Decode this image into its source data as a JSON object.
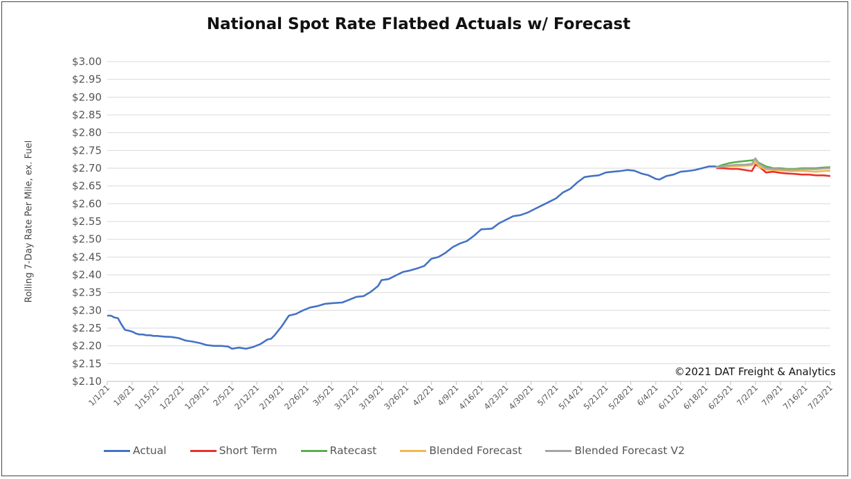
{
  "chart_data": {
    "type": "line",
    "title": "National Spot Rate Flatbed Actuals w/ Forecast",
    "ylabel": "Rolling 7-Day Rate Per Mile, ex. Fuel",
    "ylim": [
      2.1,
      3.0
    ],
    "ytick_labels": [
      "$3.00",
      "$2.95",
      "$2.90",
      "$2.85",
      "$2.80",
      "$2.75",
      "$2.70",
      "$2.65",
      "$2.60",
      "$2.55",
      "$2.50",
      "$2.45",
      "$2.40",
      "$2.35",
      "$2.30",
      "$2.25",
      "$2.20",
      "$2.15",
      "$2.10"
    ],
    "x_start": "1/1/21",
    "x_end": "7/23/21",
    "xtick_labels": [
      "1/1/21",
      "1/8/21",
      "1/15/21",
      "1/22/21",
      "1/29/21",
      "2/5/21",
      "2/12/21",
      "2/19/21",
      "2/26/21",
      "3/5/21",
      "3/12/21",
      "3/19/21",
      "3/26/21",
      "4/2/21",
      "4/9/21",
      "4/16/21",
      "4/23/21",
      "4/30/21",
      "5/7/21",
      "5/14/21",
      "5/21/21",
      "5/28/21",
      "6/4/21",
      "6/11/21",
      "6/18/21",
      "6/25/21",
      "7/2/21",
      "7/9/21",
      "7/16/21",
      "7/23/21"
    ],
    "grid": "horizontal",
    "annotation": "©2021 DAT Freight & Analytics",
    "legend_position": "bottom",
    "series": [
      {
        "name": "Actual",
        "color": "#4472C4",
        "points": [
          [
            "1/1/21",
            2.285
          ],
          [
            "1/2/21",
            2.285
          ],
          [
            "1/3/21",
            2.28
          ],
          [
            "1/4/21",
            2.278
          ],
          [
            "1/5/21",
            2.26
          ],
          [
            "1/6/21",
            2.245
          ],
          [
            "1/7/21",
            2.243
          ],
          [
            "1/8/21",
            2.24
          ],
          [
            "1/9/21",
            2.235
          ],
          [
            "1/10/21",
            2.232
          ],
          [
            "1/11/21",
            2.232
          ],
          [
            "1/12/21",
            2.23
          ],
          [
            "1/13/21",
            2.23
          ],
          [
            "1/14/21",
            2.228
          ],
          [
            "1/15/21",
            2.228
          ],
          [
            "1/17/21",
            2.226
          ],
          [
            "1/19/21",
            2.225
          ],
          [
            "1/21/21",
            2.222
          ],
          [
            "1/23/21",
            2.215
          ],
          [
            "1/25/21",
            2.212
          ],
          [
            "1/27/21",
            2.208
          ],
          [
            "1/29/21",
            2.202
          ],
          [
            "1/31/21",
            2.2
          ],
          [
            "2/2/21",
            2.2
          ],
          [
            "2/4/21",
            2.198
          ],
          [
            "2/5/21",
            2.192
          ],
          [
            "2/7/21",
            2.195
          ],
          [
            "2/9/21",
            2.192
          ],
          [
            "2/11/21",
            2.197
          ],
          [
            "2/13/21",
            2.205
          ],
          [
            "2/15/21",
            2.218
          ],
          [
            "2/16/21",
            2.22
          ],
          [
            "2/17/21",
            2.23
          ],
          [
            "2/19/21",
            2.255
          ],
          [
            "2/21/21",
            2.285
          ],
          [
            "2/23/21",
            2.29
          ],
          [
            "2/25/21",
            2.3
          ],
          [
            "2/27/21",
            2.308
          ],
          [
            "3/1/21",
            2.312
          ],
          [
            "3/3/21",
            2.318
          ],
          [
            "3/5/21",
            2.32
          ],
          [
            "3/8/21",
            2.322
          ],
          [
            "3/10/21",
            2.33
          ],
          [
            "3/12/21",
            2.338
          ],
          [
            "3/14/21",
            2.34
          ],
          [
            "3/16/21",
            2.352
          ],
          [
            "3/18/21",
            2.368
          ],
          [
            "3/19/21",
            2.385
          ],
          [
            "3/21/21",
            2.388
          ],
          [
            "3/23/21",
            2.398
          ],
          [
            "3/25/21",
            2.408
          ],
          [
            "3/27/21",
            2.412
          ],
          [
            "3/29/21",
            2.418
          ],
          [
            "3/31/21",
            2.425
          ],
          [
            "4/2/21",
            2.445
          ],
          [
            "4/4/21",
            2.45
          ],
          [
            "4/6/21",
            2.462
          ],
          [
            "4/8/21",
            2.478
          ],
          [
            "4/10/21",
            2.488
          ],
          [
            "4/12/21",
            2.495
          ],
          [
            "4/14/21",
            2.51
          ],
          [
            "4/16/21",
            2.528
          ],
          [
            "4/19/21",
            2.53
          ],
          [
            "4/21/21",
            2.545
          ],
          [
            "4/23/21",
            2.555
          ],
          [
            "4/25/21",
            2.565
          ],
          [
            "4/27/21",
            2.568
          ],
          [
            "4/29/21",
            2.575
          ],
          [
            "5/1/21",
            2.585
          ],
          [
            "5/3/21",
            2.595
          ],
          [
            "5/5/21",
            2.605
          ],
          [
            "5/7/21",
            2.615
          ],
          [
            "5/9/21",
            2.632
          ],
          [
            "5/11/21",
            2.642
          ],
          [
            "5/13/21",
            2.66
          ],
          [
            "5/15/21",
            2.675
          ],
          [
            "5/17/21",
            2.678
          ],
          [
            "5/19/21",
            2.68
          ],
          [
            "5/21/21",
            2.688
          ],
          [
            "5/23/21",
            2.69
          ],
          [
            "5/25/21",
            2.692
          ],
          [
            "5/27/21",
            2.695
          ],
          [
            "5/29/21",
            2.693
          ],
          [
            "5/31/21",
            2.685
          ],
          [
            "6/2/21",
            2.68
          ],
          [
            "6/4/21",
            2.67
          ],
          [
            "6/5/21",
            2.668
          ],
          [
            "6/7/21",
            2.678
          ],
          [
            "6/9/21",
            2.682
          ],
          [
            "6/11/21",
            2.69
          ],
          [
            "6/13/21",
            2.692
          ],
          [
            "6/15/21",
            2.695
          ],
          [
            "6/17/21",
            2.7
          ],
          [
            "6/19/21",
            2.705
          ],
          [
            "6/21/21",
            2.705
          ]
        ]
      },
      {
        "name": "Short Term",
        "color": "#E8312A",
        "points": [
          [
            "6/21/21",
            2.7
          ],
          [
            "6/23/21",
            2.7
          ],
          [
            "6/25/21",
            2.698
          ],
          [
            "6/27/21",
            2.698
          ],
          [
            "6/29/21",
            2.695
          ],
          [
            "7/1/21",
            2.692
          ],
          [
            "7/2/21",
            2.71
          ],
          [
            "7/3/21",
            2.705
          ],
          [
            "7/5/21",
            2.688
          ],
          [
            "7/7/21",
            2.69
          ],
          [
            "7/9/21",
            2.687
          ],
          [
            "7/11/21",
            2.685
          ],
          [
            "7/13/21",
            2.684
          ],
          [
            "7/15/21",
            2.682
          ],
          [
            "7/17/21",
            2.682
          ],
          [
            "7/19/21",
            2.68
          ],
          [
            "7/21/21",
            2.68
          ],
          [
            "7/23/21",
            2.678
          ]
        ]
      },
      {
        "name": "Ratecast",
        "color": "#5BAE4B",
        "points": [
          [
            "6/21/21",
            2.703
          ],
          [
            "6/23/21",
            2.71
          ],
          [
            "6/25/21",
            2.715
          ],
          [
            "6/27/21",
            2.718
          ],
          [
            "6/29/21",
            2.72
          ],
          [
            "7/1/21",
            2.722
          ],
          [
            "7/2/21",
            2.725
          ],
          [
            "7/3/21",
            2.715
          ],
          [
            "7/5/21",
            2.705
          ],
          [
            "7/7/21",
            2.7
          ],
          [
            "7/9/21",
            2.7
          ],
          [
            "7/11/21",
            2.698
          ],
          [
            "7/13/21",
            2.698
          ],
          [
            "7/15/21",
            2.7
          ],
          [
            "7/17/21",
            2.7
          ],
          [
            "7/19/21",
            2.7
          ],
          [
            "7/21/21",
            2.702
          ],
          [
            "7/23/21",
            2.703
          ]
        ]
      },
      {
        "name": "Blended Forecast",
        "color": "#F2B84B",
        "points": [
          [
            "6/21/21",
            2.702
          ],
          [
            "6/23/21",
            2.705
          ],
          [
            "6/25/21",
            2.705
          ],
          [
            "6/27/21",
            2.706
          ],
          [
            "6/29/21",
            2.707
          ],
          [
            "7/1/21",
            2.708
          ],
          [
            "7/2/21",
            2.718
          ],
          [
            "7/3/21",
            2.705
          ],
          [
            "7/5/21",
            2.696
          ],
          [
            "7/7/21",
            2.695
          ],
          [
            "7/9/21",
            2.694
          ],
          [
            "7/11/21",
            2.692
          ],
          [
            "7/13/21",
            2.692
          ],
          [
            "7/15/21",
            2.692
          ],
          [
            "7/17/21",
            2.691
          ],
          [
            "7/19/21",
            2.69
          ],
          [
            "7/21/21",
            2.692
          ],
          [
            "7/23/21",
            2.693
          ]
        ]
      },
      {
        "name": "Blended Forecast V2",
        "color": "#A5A5A5",
        "points": [
          [
            "6/21/21",
            2.702
          ],
          [
            "6/23/21",
            2.706
          ],
          [
            "6/25/21",
            2.708
          ],
          [
            "6/27/21",
            2.71
          ],
          [
            "6/29/21",
            2.71
          ],
          [
            "7/1/21",
            2.712
          ],
          [
            "7/2/21",
            2.728
          ],
          [
            "7/3/21",
            2.712
          ],
          [
            "7/5/21",
            2.7
          ],
          [
            "7/7/21",
            2.698
          ],
          [
            "7/9/21",
            2.697
          ],
          [
            "7/11/21",
            2.696
          ],
          [
            "7/13/21",
            2.696
          ],
          [
            "7/15/21",
            2.697
          ],
          [
            "7/17/21",
            2.697
          ],
          [
            "7/19/21",
            2.697
          ],
          [
            "7/21/21",
            2.699
          ],
          [
            "7/23/21",
            2.7
          ]
        ]
      }
    ]
  }
}
